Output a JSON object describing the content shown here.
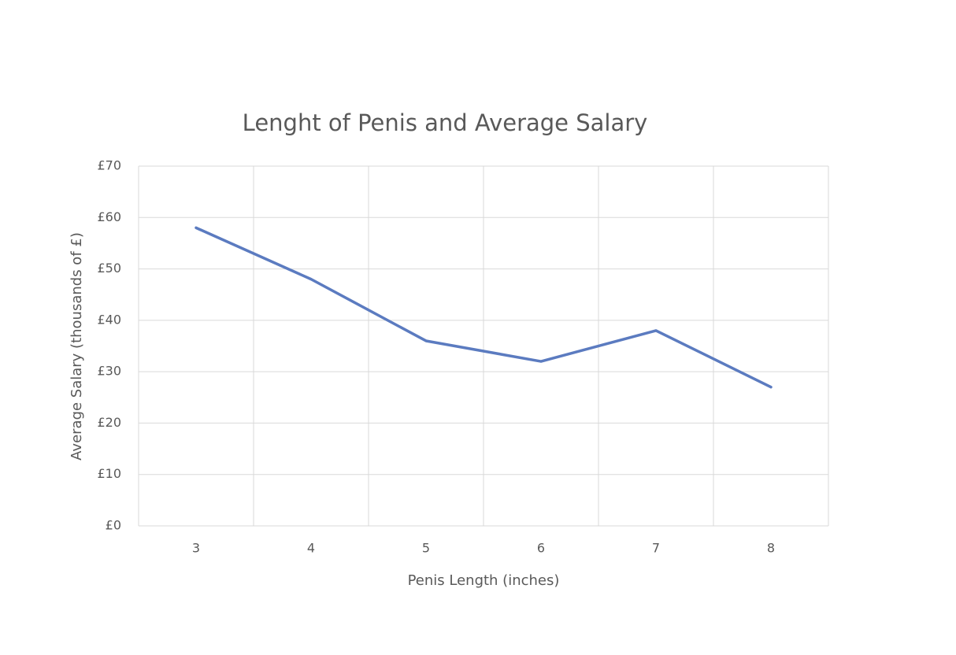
{
  "chart_data": {
    "type": "line",
    "title": "Lenght of Penis and Average Salary",
    "x_label": "Penis Length (inches)",
    "y_label": "Average Salary (thousands of £)",
    "categories": [
      "3",
      "4",
      "5",
      "6",
      "7",
      "8"
    ],
    "values": [
      58,
      48,
      36,
      32,
      38,
      27
    ],
    "color": "#5b7bc0",
    "ylim": [
      0,
      70
    ],
    "yticks": [
      {
        "value": 0,
        "label": "£0"
      },
      {
        "value": 10,
        "label": "£10"
      },
      {
        "value": 20,
        "label": "£20"
      },
      {
        "value": 30,
        "label": "£30"
      },
      {
        "value": 40,
        "label": "£40"
      },
      {
        "value": 50,
        "label": "£50"
      },
      {
        "value": 60,
        "label": "£60"
      },
      {
        "value": 70,
        "label": "£70"
      }
    ],
    "grid": true
  }
}
